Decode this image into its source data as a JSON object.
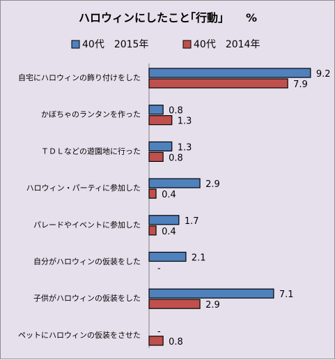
{
  "chart_data": {
    "type": "bar",
    "orientation": "horizontal",
    "title": "ハロウィンにしたこと｢行動｣　　%",
    "categories": [
      "自宅にハロウィンの飾り付けをした",
      "かぼちゃのランタンを作った",
      "ＴＤＬなどの遊園地に行った",
      "ハロウィン・パーティに参加した",
      "パレードやイベントに参加した",
      "自分がハロウィンの仮装をした",
      "子供がハロウィンの仮装をした",
      "ペットにハロウィンの仮装をさせた"
    ],
    "series": [
      {
        "name": "40代　2015年",
        "color": "#4f81bd",
        "values": [
          9.2,
          0.8,
          1.3,
          2.9,
          1.7,
          2.1,
          7.1,
          null
        ],
        "labels": [
          "9.2",
          "0.8",
          "1.3",
          "2.9",
          "1.7",
          "2.1",
          "7.1",
          "-"
        ]
      },
      {
        "name": "40代　2014年",
        "color": "#c0504d",
        "values": [
          7.9,
          1.3,
          0.8,
          0.4,
          0.4,
          null,
          2.9,
          0.8
        ],
        "labels": [
          "7.9",
          "1.3",
          "0.8",
          "0.4",
          "0.4",
          "-",
          "2.9",
          "0.8"
        ]
      }
    ],
    "xlim": [
      0,
      10
    ],
    "grid": false,
    "legend": "top"
  }
}
